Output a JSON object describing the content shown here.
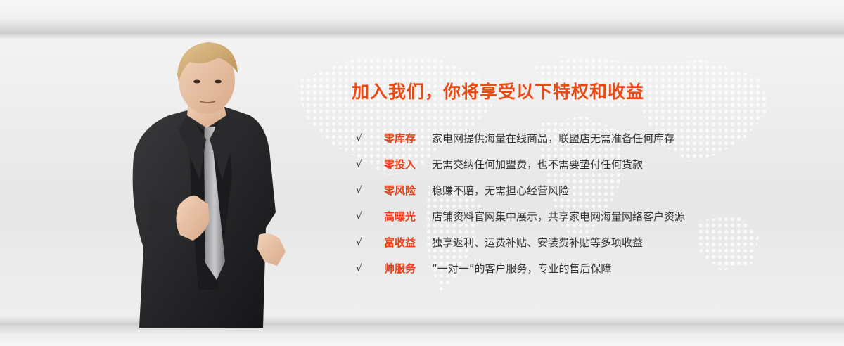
{
  "banner": {
    "headline": "加入我们，你将享受以下特权和收益",
    "check_glyph": "√",
    "benefits": [
      {
        "title": "零库存",
        "desc": "家电网提供海量在线商品，联盟店无需准备任何库存"
      },
      {
        "title": "零投入",
        "desc": "无需交纳任何加盟费，也不需要垫付任何货款"
      },
      {
        "title": "零风险",
        "desc": "稳赚不赔，无需担心经营风险"
      },
      {
        "title": "高曝光",
        "desc": "店铺资料官网集中展示，共享家电网海量网络客户资源"
      },
      {
        "title": "富收益",
        "desc": "独享返利、运费补贴、安装费补贴等多项收益"
      },
      {
        "title": "帅服务",
        "desc": "“一对一”的客户服务，专业的售后保障"
      }
    ],
    "colors": {
      "accent": "#ea4a14",
      "body_text": "#333333",
      "background": "#ebebeb"
    },
    "decorations": [
      "world-map-dots",
      "businessman-figure"
    ]
  }
}
